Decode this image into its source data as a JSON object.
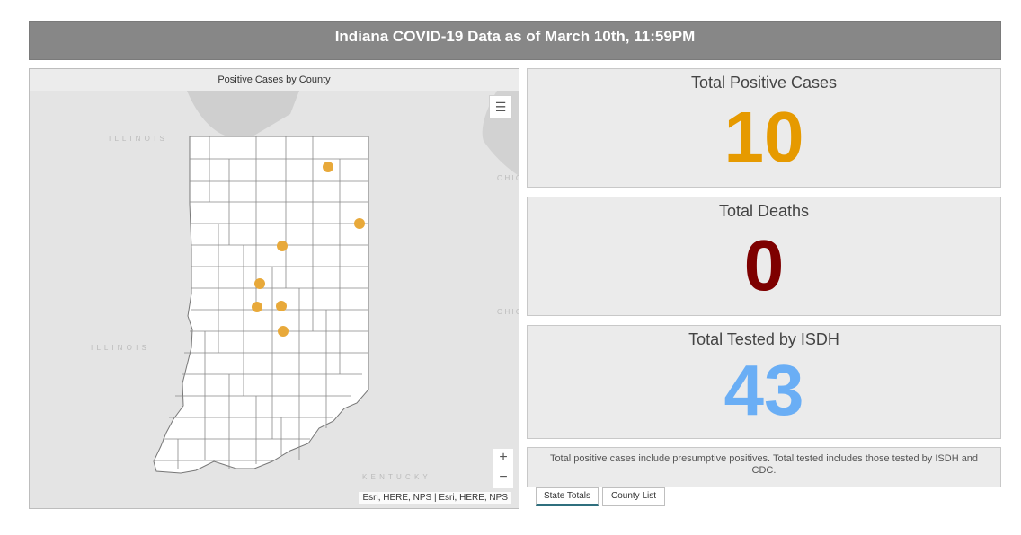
{
  "header": {
    "title": "Indiana COVID-19 Data as of March 10th, 11:59PM"
  },
  "map": {
    "title": "Positive Cases by County",
    "legend_icon": "legend-list-icon",
    "zoom_in_label": "+",
    "zoom_out_label": "−",
    "attribution": "Esri, HERE, NPS | Esri, HERE, NPS",
    "marker_color": "#e8a93a",
    "case_marker_count": 7
  },
  "stats": {
    "positive": {
      "title": "Total Positive Cases",
      "value": "10",
      "color": "#e69a00"
    },
    "deaths": {
      "title": "Total Deaths",
      "value": "0",
      "color": "#7e0000"
    },
    "tested": {
      "title": "Total Tested by ISDH",
      "value": "43",
      "color": "#6aaef5"
    }
  },
  "note": "Total positive cases include presumptive positives.  Total tested includes those tested by ISDH and CDC.",
  "tabs": [
    {
      "label": "State Totals",
      "active": true
    },
    {
      "label": "County List",
      "active": false
    }
  ]
}
